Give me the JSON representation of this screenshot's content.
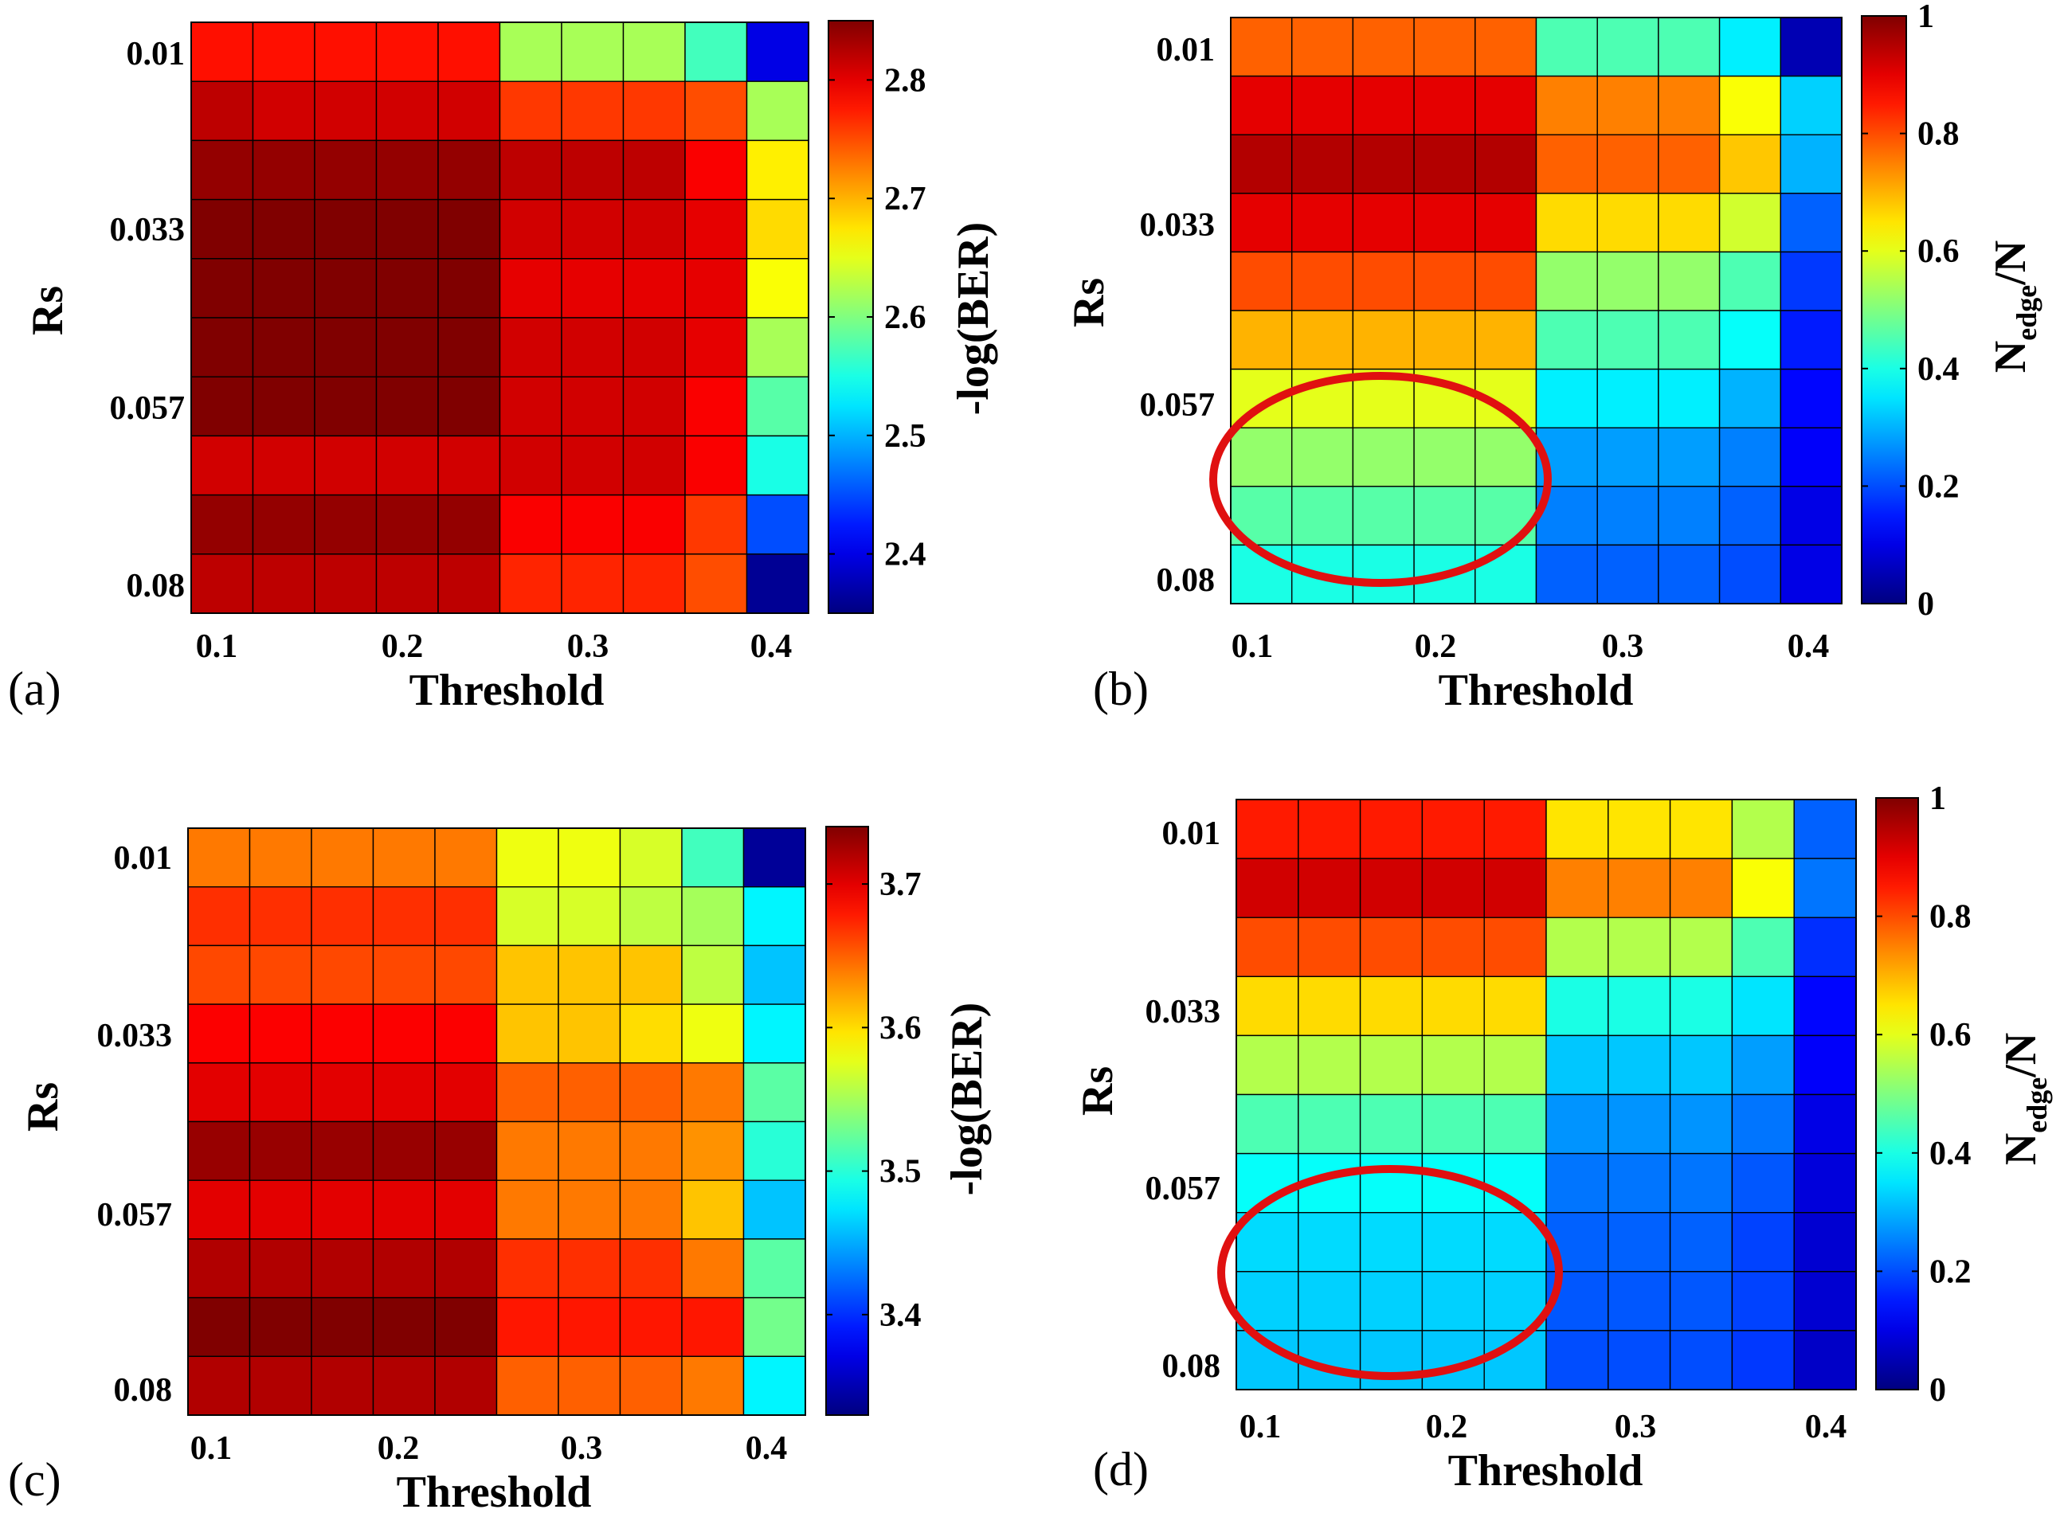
{
  "chart_data": [
    {
      "type": "heatmap",
      "panel": "(a)",
      "xlabel": "Threshold",
      "ylabel": "Rs",
      "colorbar_label": "-log(BER)",
      "x_ticks": [
        "0.1",
        "0.2",
        "0.3",
        "0.4"
      ],
      "y_ticks": [
        "0.01",
        "0.033",
        "0.057",
        "0.08"
      ],
      "colorbar_ticks": [
        "2.4",
        "2.5",
        "2.6",
        "2.7",
        "2.8"
      ],
      "colorbar_range": [
        2.35,
        2.85
      ],
      "values": [
        [
          2.78,
          2.78,
          2.78,
          2.78,
          2.78,
          2.62,
          2.62,
          2.62,
          2.57,
          2.4
        ],
        [
          2.82,
          2.81,
          2.81,
          2.81,
          2.81,
          2.76,
          2.76,
          2.76,
          2.75,
          2.62
        ],
        [
          2.84,
          2.84,
          2.84,
          2.84,
          2.84,
          2.82,
          2.82,
          2.82,
          2.79,
          2.67
        ],
        [
          2.85,
          2.85,
          2.85,
          2.85,
          2.85,
          2.81,
          2.81,
          2.81,
          2.8,
          2.68
        ],
        [
          2.85,
          2.85,
          2.85,
          2.85,
          2.85,
          2.8,
          2.8,
          2.8,
          2.8,
          2.66
        ],
        [
          2.86,
          2.86,
          2.86,
          2.86,
          2.86,
          2.81,
          2.81,
          2.81,
          2.8,
          2.62
        ],
        [
          2.85,
          2.85,
          2.85,
          2.85,
          2.85,
          2.81,
          2.81,
          2.81,
          2.79,
          2.58
        ],
        [
          2.81,
          2.81,
          2.81,
          2.81,
          2.81,
          2.81,
          2.81,
          2.81,
          2.79,
          2.55
        ],
        [
          2.84,
          2.84,
          2.84,
          2.84,
          2.84,
          2.79,
          2.79,
          2.79,
          2.76,
          2.45
        ],
        [
          2.82,
          2.82,
          2.82,
          2.82,
          2.82,
          2.77,
          2.77,
          2.77,
          2.75,
          2.36
        ]
      ]
    },
    {
      "type": "heatmap",
      "panel": "(b)",
      "xlabel": "Threshold",
      "ylabel": "Rs",
      "colorbar_label": "N",
      "colorbar_label_sub": "edge",
      "colorbar_label_tail": "/N",
      "x_ticks": [
        "0.1",
        "0.2",
        "0.3",
        "0.4"
      ],
      "y_ticks": [
        "0.01",
        "0.033",
        "0.057",
        "0.08"
      ],
      "colorbar_ticks": [
        "0",
        "0.2",
        "0.4",
        "0.6",
        "0.8",
        "1"
      ],
      "colorbar_range": [
        0,
        1
      ],
      "annotation": "red ellipse highlighting low-Rs-high / low-threshold region",
      "values": [
        [
          0.78,
          0.78,
          0.78,
          0.78,
          0.78,
          0.45,
          0.45,
          0.45,
          0.36,
          0.05
        ],
        [
          0.9,
          0.9,
          0.9,
          0.9,
          0.9,
          0.75,
          0.75,
          0.75,
          0.62,
          0.33
        ],
        [
          0.95,
          0.95,
          0.95,
          0.95,
          0.95,
          0.78,
          0.78,
          0.78,
          0.68,
          0.3
        ],
        [
          0.9,
          0.9,
          0.9,
          0.9,
          0.9,
          0.66,
          0.66,
          0.66,
          0.58,
          0.22
        ],
        [
          0.8,
          0.8,
          0.8,
          0.8,
          0.8,
          0.52,
          0.52,
          0.52,
          0.45,
          0.18
        ],
        [
          0.7,
          0.7,
          0.7,
          0.7,
          0.7,
          0.45,
          0.45,
          0.45,
          0.38,
          0.15
        ],
        [
          0.6,
          0.6,
          0.6,
          0.6,
          0.6,
          0.36,
          0.36,
          0.36,
          0.3,
          0.13
        ],
        [
          0.52,
          0.52,
          0.52,
          0.52,
          0.52,
          0.28,
          0.28,
          0.28,
          0.25,
          0.12
        ],
        [
          0.46,
          0.46,
          0.46,
          0.46,
          0.46,
          0.25,
          0.25,
          0.25,
          0.22,
          0.1
        ],
        [
          0.4,
          0.4,
          0.4,
          0.4,
          0.4,
          0.22,
          0.22,
          0.22,
          0.2,
          0.1
        ]
      ]
    },
    {
      "type": "heatmap",
      "panel": "(c)",
      "xlabel": "Threshold",
      "ylabel": "Rs",
      "colorbar_label": "-log(BER)",
      "x_ticks": [
        "0.1",
        "0.2",
        "0.3",
        "0.4"
      ],
      "y_ticks": [
        "0.01",
        "0.033",
        "0.057",
        "0.08"
      ],
      "colorbar_ticks": [
        "3.4",
        "3.5",
        "3.6",
        "3.7"
      ],
      "colorbar_range": [
        3.33,
        3.74
      ],
      "values": [
        [
          3.64,
          3.64,
          3.64,
          3.64,
          3.64,
          3.58,
          3.58,
          3.57,
          3.51,
          3.34
        ],
        [
          3.67,
          3.67,
          3.67,
          3.67,
          3.67,
          3.57,
          3.57,
          3.56,
          3.55,
          3.48
        ],
        [
          3.66,
          3.66,
          3.66,
          3.66,
          3.66,
          3.61,
          3.61,
          3.61,
          3.56,
          3.46
        ],
        [
          3.69,
          3.69,
          3.69,
          3.69,
          3.69,
          3.61,
          3.61,
          3.6,
          3.58,
          3.48
        ],
        [
          3.7,
          3.7,
          3.7,
          3.7,
          3.7,
          3.65,
          3.65,
          3.65,
          3.64,
          3.52
        ],
        [
          3.73,
          3.73,
          3.73,
          3.73,
          3.73,
          3.64,
          3.64,
          3.64,
          3.63,
          3.5
        ],
        [
          3.7,
          3.7,
          3.7,
          3.7,
          3.7,
          3.64,
          3.64,
          3.64,
          3.61,
          3.46
        ],
        [
          3.72,
          3.72,
          3.72,
          3.72,
          3.72,
          3.67,
          3.67,
          3.67,
          3.64,
          3.52
        ],
        [
          3.74,
          3.74,
          3.74,
          3.74,
          3.74,
          3.68,
          3.68,
          3.68,
          3.68,
          3.53
        ],
        [
          3.72,
          3.72,
          3.72,
          3.72,
          3.72,
          3.65,
          3.65,
          3.65,
          3.64,
          3.48
        ]
      ]
    },
    {
      "type": "heatmap",
      "panel": "(d)",
      "xlabel": "Threshold",
      "ylabel": "Rs",
      "colorbar_label": "N",
      "colorbar_label_sub": "edge",
      "colorbar_label_tail": "/N",
      "x_ticks": [
        "0.1",
        "0.2",
        "0.3",
        "0.4"
      ],
      "y_ticks": [
        "0.01",
        "0.033",
        "0.057",
        "0.08"
      ],
      "colorbar_ticks": [
        "0",
        "0.2",
        "0.4",
        "0.6",
        "0.8",
        "1"
      ],
      "colorbar_range": [
        0,
        1
      ],
      "annotation": "red ellipse highlighting low-Rs-high / low-threshold region",
      "values": [
        [
          0.85,
          0.85,
          0.85,
          0.85,
          0.85,
          0.65,
          0.65,
          0.65,
          0.55,
          0.22
        ],
        [
          0.92,
          0.92,
          0.92,
          0.92,
          0.92,
          0.75,
          0.75,
          0.75,
          0.62,
          0.24
        ],
        [
          0.8,
          0.8,
          0.8,
          0.8,
          0.8,
          0.55,
          0.55,
          0.55,
          0.45,
          0.17
        ],
        [
          0.66,
          0.66,
          0.66,
          0.66,
          0.66,
          0.4,
          0.4,
          0.4,
          0.35,
          0.13
        ],
        [
          0.55,
          0.55,
          0.55,
          0.55,
          0.55,
          0.32,
          0.32,
          0.32,
          0.28,
          0.12
        ],
        [
          0.45,
          0.45,
          0.45,
          0.45,
          0.45,
          0.27,
          0.27,
          0.27,
          0.24,
          0.1
        ],
        [
          0.38,
          0.38,
          0.38,
          0.38,
          0.38,
          0.24,
          0.24,
          0.24,
          0.21,
          0.09
        ],
        [
          0.34,
          0.34,
          0.34,
          0.34,
          0.34,
          0.22,
          0.22,
          0.22,
          0.19,
          0.08
        ],
        [
          0.33,
          0.33,
          0.33,
          0.33,
          0.33,
          0.21,
          0.21,
          0.21,
          0.19,
          0.08
        ],
        [
          0.32,
          0.32,
          0.32,
          0.32,
          0.32,
          0.2,
          0.2,
          0.2,
          0.18,
          0.07
        ]
      ]
    }
  ]
}
